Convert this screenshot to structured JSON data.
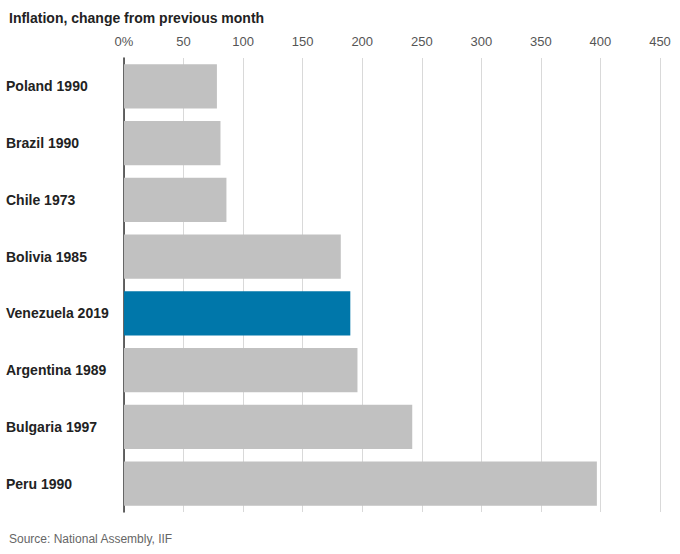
{
  "chart_data": {
    "type": "bar",
    "title": "Inflation, change from previous month",
    "source": "Source: National Assembly, IIF",
    "orientation": "horizontal",
    "categories": [
      "Poland 1990",
      "Brazil 1990",
      "Chile 1973",
      "Bolivia 1985",
      "Venezuela 2019",
      "Argentina 1989",
      "Bulgaria 1997",
      "Peru 1990"
    ],
    "values": [
      78,
      81,
      86,
      182,
      190,
      196,
      242,
      397
    ],
    "colors": [
      "#c1c1c1",
      "#c1c1c1",
      "#c1c1c1",
      "#c1c1c1",
      "#0077aa",
      "#c1c1c1",
      "#c1c1c1",
      "#c1c1c1"
    ],
    "xlim": [
      0,
      450
    ],
    "xticks": [
      {
        "value": 0,
        "label": "0%"
      },
      50,
      100,
      150,
      200,
      250,
      300,
      350,
      400,
      450
    ],
    "grid": true
  }
}
